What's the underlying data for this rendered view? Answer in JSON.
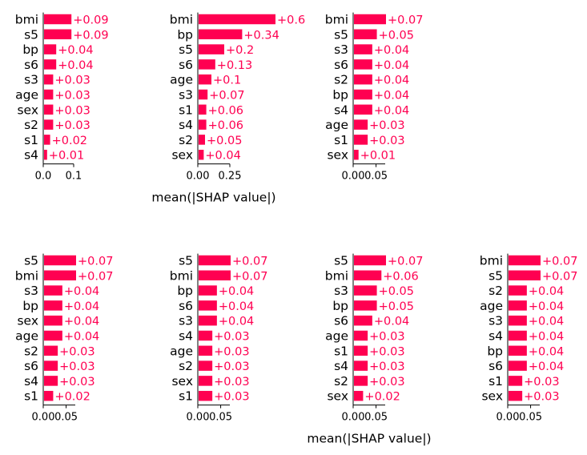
{
  "chart_data": [
    {
      "type": "bar",
      "orientation": "horizontal",
      "categories": [
        "bmi",
        "s5",
        "bp",
        "s6",
        "s3",
        "age",
        "sex",
        "s2",
        "s1",
        "s4"
      ],
      "values": [
        0.09,
        0.09,
        0.04,
        0.04,
        0.03,
        0.03,
        0.03,
        0.03,
        0.02,
        0.01
      ],
      "value_labels": [
        "+0.09",
        "+0.09",
        "+0.04",
        "+0.04",
        "+0.03",
        "+0.03",
        "+0.03",
        "+0.03",
        "+0.02",
        "+0.01"
      ],
      "xticks": [
        0.0,
        0.1
      ],
      "xtick_labels": [
        "0.0",
        "0.1"
      ],
      "xlim": [
        0,
        0.1
      ],
      "xlabel": "",
      "bar_color": "#ff0051"
    },
    {
      "type": "bar",
      "orientation": "horizontal",
      "categories": [
        "bmi",
        "bp",
        "s5",
        "s6",
        "age",
        "s3",
        "s1",
        "s4",
        "s2",
        "sex"
      ],
      "values": [
        0.6,
        0.34,
        0.2,
        0.13,
        0.1,
        0.07,
        0.06,
        0.06,
        0.05,
        0.04
      ],
      "value_labels": [
        "+0.6",
        "+0.34",
        "+0.2",
        "+0.13",
        "+0.1",
        "+0.07",
        "+0.06",
        "+0.06",
        "+0.05",
        "+0.04"
      ],
      "xticks": [
        0.0,
        0.25
      ],
      "xtick_labels": [
        "0.00",
        "0.25"
      ],
      "xlim": [
        0,
        0.25
      ],
      "xlabel": "mean(|SHAP value|)",
      "bar_color": "#ff0051"
    },
    {
      "type": "bar",
      "orientation": "horizontal",
      "categories": [
        "bmi",
        "s5",
        "s3",
        "s6",
        "s2",
        "bp",
        "s4",
        "age",
        "s1",
        "sex"
      ],
      "values": [
        0.07,
        0.05,
        0.04,
        0.04,
        0.04,
        0.04,
        0.04,
        0.03,
        0.03,
        0.01
      ],
      "value_labels": [
        "+0.07",
        "+0.05",
        "+0.04",
        "+0.04",
        "+0.04",
        "+0.04",
        "+0.04",
        "+0.03",
        "+0.03",
        "+0.01"
      ],
      "xticks": [
        0.0,
        0.05
      ],
      "xtick_labels": [
        "0.00",
        "0.05"
      ],
      "xlim": [
        0,
        0.07
      ],
      "xlabel": "",
      "bar_color": "#ff0051"
    },
    {
      "type": "bar",
      "orientation": "horizontal",
      "categories": [
        "s5",
        "bmi",
        "s3",
        "bp",
        "sex",
        "age",
        "s2",
        "s6",
        "s4",
        "s1"
      ],
      "values": [
        0.07,
        0.07,
        0.04,
        0.04,
        0.04,
        0.04,
        0.03,
        0.03,
        0.03,
        0.02
      ],
      "value_labels": [
        "+0.07",
        "+0.07",
        "+0.04",
        "+0.04",
        "+0.04",
        "+0.04",
        "+0.03",
        "+0.03",
        "+0.03",
        "+0.02"
      ],
      "xticks": [
        0.0,
        0.05
      ],
      "xtick_labels": [
        "0.00",
        "0.05"
      ],
      "xlim": [
        0,
        0.07
      ],
      "xlabel": "",
      "bar_color": "#ff0051"
    },
    {
      "type": "bar",
      "orientation": "horizontal",
      "categories": [
        "s5",
        "bmi",
        "bp",
        "s6",
        "s3",
        "s4",
        "age",
        "s2",
        "sex",
        "s1"
      ],
      "values": [
        0.07,
        0.07,
        0.04,
        0.04,
        0.04,
        0.03,
        0.03,
        0.03,
        0.03,
        0.03
      ],
      "value_labels": [
        "+0.07",
        "+0.07",
        "+0.04",
        "+0.04",
        "+0.04",
        "+0.03",
        "+0.03",
        "+0.03",
        "+0.03",
        "+0.03"
      ],
      "xticks": [
        0.0,
        0.05
      ],
      "xtick_labels": [
        "0.00",
        "0.05"
      ],
      "xlim": [
        0,
        0.07
      ],
      "xlabel": "",
      "bar_color": "#ff0051"
    },
    {
      "type": "bar",
      "orientation": "horizontal",
      "categories": [
        "s5",
        "bmi",
        "s3",
        "bp",
        "s6",
        "age",
        "s1",
        "s4",
        "s2",
        "sex"
      ],
      "values": [
        0.07,
        0.06,
        0.05,
        0.05,
        0.04,
        0.03,
        0.03,
        0.03,
        0.03,
        0.02
      ],
      "value_labels": [
        "+0.07",
        "+0.06",
        "+0.05",
        "+0.05",
        "+0.04",
        "+0.03",
        "+0.03",
        "+0.03",
        "+0.03",
        "+0.02"
      ],
      "xticks": [
        0.0,
        0.05
      ],
      "xtick_labels": [
        "0.00",
        "0.05"
      ],
      "xlim": [
        0,
        0.07
      ],
      "xlabel": "mean(|SHAP value|)",
      "bar_color": "#ff0051"
    },
    {
      "type": "bar",
      "orientation": "horizontal",
      "categories": [
        "bmi",
        "s5",
        "s2",
        "age",
        "s3",
        "s4",
        "bp",
        "s6",
        "s1",
        "sex"
      ],
      "values": [
        0.07,
        0.07,
        0.04,
        0.04,
        0.04,
        0.04,
        0.04,
        0.04,
        0.03,
        0.03
      ],
      "value_labels": [
        "+0.07",
        "+0.07",
        "+0.04",
        "+0.04",
        "+0.04",
        "+0.04",
        "+0.04",
        "+0.04",
        "+0.03",
        "+0.03"
      ],
      "xticks": [
        0.0,
        0.05
      ],
      "xtick_labels": [
        "0.00",
        "0.05"
      ],
      "xlim": [
        0,
        0.07
      ],
      "xlabel": "",
      "bar_color": "#ff0051"
    }
  ]
}
